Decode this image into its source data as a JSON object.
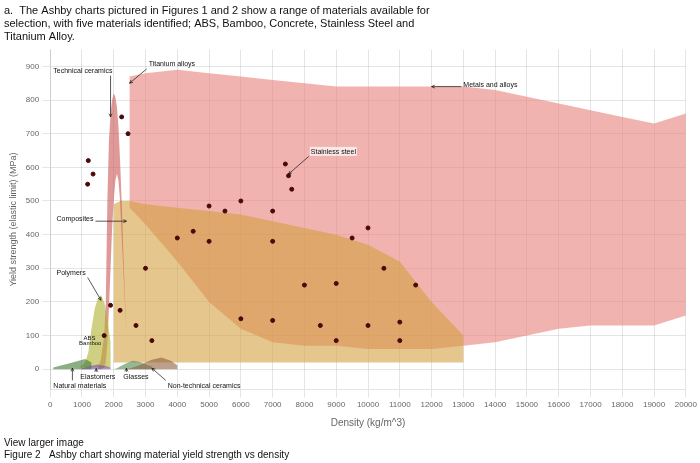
{
  "chart_data": {
    "type": "scatter",
    "title": [
      "a.  The Ashby charts pictured in Figures 1 and 2 show a range of materials available for",
      "selection, with five materials identified; ABS, Bamboo, Concrete, Stainless Steel and",
      "Titanium Alloy."
    ],
    "subtitle": [
      "View larger image",
      "Figure 2   Ashby chart showing material yield strength vs density"
    ],
    "xlabel": "Density (kg/m^3)",
    "ylabel": "Yield strength (elastic limit) (MPa)",
    "xlim": [
      0,
      20000
    ],
    "ylim": [
      -60,
      950
    ],
    "xticks": [
      0,
      1000,
      2000,
      3000,
      4000,
      5000,
      6000,
      7000,
      8000,
      9000,
      10000,
      11000,
      12000,
      13000,
      14000,
      15000,
      16000,
      17000,
      18000,
      19000,
      20000
    ],
    "yticks": [
      0,
      100,
      200,
      300,
      400,
      500,
      600,
      700,
      800,
      900
    ],
    "grid": true,
    "series": [
      {
        "type": "area",
        "color": "#e8807a",
        "x": [
          2500,
          3000,
          4000,
          5000,
          6000,
          7000,
          8000,
          9000,
          10000,
          11000,
          12000,
          13000,
          14000,
          15000,
          16000,
          17000,
          18000,
          19000,
          20000,
          20000,
          19000,
          18000,
          17000,
          16000,
          15000,
          14000,
          13000,
          12000,
          11000,
          10000,
          9000,
          8000,
          7000,
          6000,
          5000,
          4000,
          3000,
          2500
        ],
        "values": [
          870,
          880,
          890,
          880,
          870,
          860,
          850,
          840,
          840,
          840,
          840,
          840,
          830,
          810,
          790,
          770,
          750,
          730,
          760,
          160,
          130,
          130,
          130,
          120,
          100,
          80,
          70,
          60,
          60,
          60,
          70,
          70,
          80,
          120,
          200,
          320,
          430,
          480
        ]
      },
      {
        "type": "area",
        "color": "#d4a040",
        "x": [
          2000,
          2200,
          2500,
          3000,
          4000,
          5000,
          6000,
          7000,
          8000,
          9000,
          10000,
          11000,
          12000,
          13000,
          13000,
          12000,
          11000,
          10000,
          9000,
          8000,
          7000,
          6000,
          5000,
          4000,
          3000,
          2500,
          2200,
          2000
        ],
        "values": [
          490,
          500,
          500,
          490,
          480,
          470,
          460,
          440,
          420,
          400,
          370,
          320,
          200,
          100,
          20,
          20,
          20,
          20,
          20,
          20,
          20,
          20,
          20,
          20,
          20,
          20,
          20,
          20
        ]
      },
      {
        "type": "area",
        "color": "#cc5555",
        "x": [
          1500,
          1600,
          1700,
          1750,
          1800,
          1850,
          1900,
          1950,
          2000,
          2050,
          2100,
          2150,
          2200,
          2250,
          2300,
          2400,
          2500,
          2500,
          2400,
          2300,
          2250,
          2200,
          2150,
          2100,
          2050,
          2000,
          1950,
          1900,
          1850,
          1800,
          1750,
          1700,
          1600,
          1500
        ],
        "values": [
          0,
          30,
          100,
          200,
          500,
          680,
          760,
          800,
          820,
          810,
          780,
          720,
          620,
          500,
          350,
          100,
          20,
          20,
          100,
          300,
          400,
          500,
          560,
          580,
          560,
          500,
          420,
          300,
          180,
          80,
          20,
          5,
          0,
          0
        ]
      },
      {
        "type": "area",
        "color": "#b0b030",
        "x": [
          900,
          1000,
          1100,
          1200,
          1300,
          1400,
          1500,
          1600,
          1700,
          1800,
          1900,
          1900,
          1800,
          1700,
          1600,
          1500,
          1400,
          1300,
          1200,
          1100,
          1000,
          900
        ],
        "values": [
          5,
          10,
          20,
          50,
          120,
          180,
          210,
          220,
          200,
          150,
          80,
          5,
          5,
          5,
          5,
          5,
          5,
          5,
          5,
          5,
          5,
          5
        ]
      },
      {
        "type": "area",
        "color": "#407830",
        "x": [
          100,
          300,
          500,
          700,
          900,
          1100,
          1300,
          1300,
          1100,
          900,
          700,
          500,
          300,
          100
        ],
        "values": [
          5,
          10,
          15,
          20,
          25,
          30,
          20,
          0,
          0,
          0,
          0,
          0,
          0,
          0
        ]
      },
      {
        "type": "area",
        "color": "#7050a0",
        "x": [
          1000,
          1100,
          1200,
          1300,
          1400,
          1500,
          1600,
          1700,
          1800,
          1900,
          1900,
          1800,
          1700,
          1600,
          1500,
          1400,
          1300,
          1200,
          1100,
          1000
        ],
        "values": [
          3,
          5,
          8,
          10,
          12,
          14,
          12,
          10,
          8,
          5,
          0,
          0,
          0,
          0,
          0,
          0,
          0,
          0,
          0,
          0
        ]
      },
      {
        "type": "area",
        "color": "#508850",
        "x": [
          2000,
          2100,
          2200,
          2400,
          2600,
          2800,
          3000,
          3200,
          3200,
          3000,
          2800,
          2600,
          2400,
          2200,
          2100,
          2000
        ],
        "values": [
          0,
          3,
          8,
          18,
          25,
          22,
          15,
          8,
          0,
          0,
          0,
          0,
          0,
          0,
          0,
          0
        ]
      },
      {
        "type": "area",
        "color": "#906040",
        "x": [
          2400,
          2600,
          2800,
          3000,
          3200,
          3500,
          3800,
          4000,
          4000,
          3800,
          3500,
          3200,
          3000,
          2800,
          2600,
          2400
        ],
        "values": [
          0,
          5,
          12,
          20,
          28,
          35,
          25,
          12,
          0,
          0,
          0,
          0,
          0,
          0,
          0,
          0
        ]
      },
      {
        "type": "scatter",
        "color": "#4a0808",
        "marker": "circle",
        "x": [
          1200,
          1350,
          1180,
          2250,
          2450,
          3000,
          4500,
          5000,
          5500,
          6000,
          7000,
          7400,
          7500,
          7600,
          4000,
          5000,
          7000,
          8000,
          9000,
          9500,
          10000,
          10500,
          11000,
          11500,
          6000,
          7000,
          8500,
          9000,
          10000,
          11000,
          3200,
          2700,
          2200,
          1900,
          1700
        ],
        "values": [
          620,
          580,
          550,
          750,
          700,
          300,
          410,
          380,
          470,
          500,
          470,
          610,
          575,
          535,
          390,
          485,
          380,
          250,
          255,
          390,
          420,
          300,
          140,
          250,
          150,
          145,
          130,
          85,
          130,
          85,
          85,
          130,
          175,
          190,
          100
        ]
      }
    ],
    "annotations": [
      {
        "text": "Titanium alloys",
        "x": 2500,
        "y": 850,
        "arrow": true
      },
      {
        "text": "Technical ceramics",
        "x": 1900,
        "y": 750,
        "arrow": true
      },
      {
        "text": "Metals and alloys",
        "x": 12000,
        "y": 840,
        "arrow": true
      },
      {
        "text": "Stainless steel",
        "x": 7500,
        "y": 580,
        "arrow": true
      },
      {
        "text": "Composites",
        "x": 2400,
        "y": 440,
        "arrow": true
      },
      {
        "text": "Polymers",
        "x": 1600,
        "y": 205,
        "arrow": true
      },
      {
        "text": "Elastomers",
        "x": 1450,
        "y": 2,
        "arrow": true
      },
      {
        "text": "Natural materials",
        "x": 700,
        "y": 3,
        "arrow": true
      },
      {
        "text": "Glasses",
        "x": 2400,
        "y": 3,
        "arrow": true
      },
      {
        "text": "Non-technical ceramics",
        "x": 3200,
        "y": 3,
        "arrow": true
      },
      {
        "text": "ABS",
        "x": 1050,
        "y": 88
      },
      {
        "text": "Bamboo",
        "x": 910,
        "y": 72
      }
    ]
  }
}
